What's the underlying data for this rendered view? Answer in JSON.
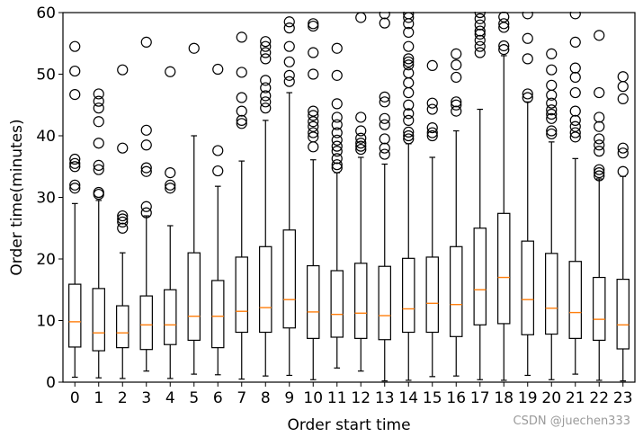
{
  "chart_data": {
    "type": "box",
    "xlabel": "Order start time",
    "ylabel": "Order time(minutes)",
    "ylim": [
      0,
      60
    ],
    "yticks": [
      0,
      10,
      20,
      30,
      40,
      50,
      60
    ],
    "categories": [
      "0",
      "1",
      "2",
      "3",
      "4",
      "5",
      "6",
      "7",
      "8",
      "9",
      "10",
      "11",
      "12",
      "13",
      "14",
      "15",
      "16",
      "17",
      "18",
      "19",
      "20",
      "21",
      "22",
      "23"
    ],
    "boxes": [
      {
        "q1": 5.7,
        "median": 9.8,
        "q3": 15.9,
        "whisker_low": 0.8,
        "whisker_high": 29.0,
        "outliers": [
          31.5,
          32.0,
          35.0,
          35.5,
          36.2,
          46.7,
          50.5,
          54.5
        ]
      },
      {
        "q1": 5.1,
        "median": 8.0,
        "q3": 15.2,
        "whisker_low": 0.7,
        "whisker_high": 29.5,
        "outliers": [
          30.5,
          30.8,
          34.5,
          35.2,
          38.8,
          42.3,
          44.5,
          45.6,
          46.8
        ]
      },
      {
        "q1": 5.6,
        "median": 8.0,
        "q3": 12.4,
        "whisker_low": 0.6,
        "whisker_high": 21.0,
        "outliers": [
          25.0,
          26.0,
          26.5,
          27.0,
          38.0,
          50.7
        ]
      },
      {
        "q1": 5.3,
        "median": 9.3,
        "q3": 14.0,
        "whisker_low": 1.8,
        "whisker_high": 27.0,
        "outliers": [
          27.5,
          28.5,
          34.2,
          34.8,
          38.5,
          40.9,
          55.2
        ]
      },
      {
        "q1": 6.1,
        "median": 9.3,
        "q3": 15.0,
        "whisker_low": 0.6,
        "whisker_high": 25.4,
        "outliers": [
          31.5,
          32.0,
          34.0,
          50.4
        ]
      },
      {
        "q1": 6.8,
        "median": 10.7,
        "q3": 21.0,
        "whisker_low": 1.3,
        "whisker_high": 40.0,
        "outliers": [
          54.2
        ]
      },
      {
        "q1": 5.6,
        "median": 10.7,
        "q3": 16.5,
        "whisker_low": 1.2,
        "whisker_high": 31.8,
        "outliers": [
          34.3,
          37.6,
          50.8
        ]
      },
      {
        "q1": 8.1,
        "median": 11.5,
        "q3": 20.3,
        "whisker_low": 0.5,
        "whisker_high": 35.9,
        "outliers": [
          42.0,
          42.5,
          44.0,
          46.2,
          50.3,
          56.0
        ]
      },
      {
        "q1": 8.1,
        "median": 12.1,
        "q3": 22.0,
        "whisker_low": 1.0,
        "whisker_high": 42.5,
        "outliers": [
          44.5,
          45.5,
          46.5,
          47.8,
          49.0,
          52.5,
          53.5,
          54.5,
          55.3
        ]
      },
      {
        "q1": 8.8,
        "median": 13.4,
        "q3": 24.7,
        "whisker_low": 1.1,
        "whisker_high": 47.0,
        "outliers": [
          48.8,
          49.8,
          52.0,
          54.5,
          57.5,
          58.5
        ]
      },
      {
        "q1": 7.1,
        "median": 11.4,
        "q3": 18.9,
        "whisker_low": 0.4,
        "whisker_high": 36.1,
        "outliers": [
          38.2,
          39.8,
          40.5,
          41.5,
          42.3,
          43.3,
          44.0,
          50.0,
          53.5,
          57.8,
          58.2
        ]
      },
      {
        "q1": 7.3,
        "median": 11.0,
        "q3": 18.1,
        "whisker_low": 2.3,
        "whisker_high": 34.0,
        "outliers": [
          34.8,
          35.3,
          36.3,
          37.5,
          38.3,
          39.3,
          40.5,
          41.8,
          43.0,
          45.2,
          49.8,
          54.2
        ]
      },
      {
        "q1": 7.1,
        "median": 11.2,
        "q3": 19.3,
        "whisker_low": 1.8,
        "whisker_high": 36.5,
        "outliers": [
          37.8,
          38.3,
          38.8,
          39.6,
          40.8,
          43.0,
          59.2
        ]
      },
      {
        "q1": 6.9,
        "median": 10.8,
        "q3": 18.8,
        "whisker_low": 0.2,
        "whisker_high": 35.4,
        "outliers": [
          37.0,
          38.0,
          39.5,
          41.8,
          42.8,
          45.5,
          46.3,
          58.3,
          59.8
        ]
      },
      {
        "q1": 8.1,
        "median": 11.9,
        "q3": 20.1,
        "whisker_low": 0.3,
        "whisker_high": 38.7,
        "outliers": [
          39.5,
          40.0,
          40.6,
          42.5,
          43.6,
          45.0,
          47.0,
          48.6,
          50.2,
          51.5,
          52.0,
          52.5,
          54.5,
          56.8,
          58.2,
          59.2,
          59.8
        ]
      },
      {
        "q1": 8.1,
        "median": 12.8,
        "q3": 20.3,
        "whisker_low": 0.9,
        "whisker_high": 36.5,
        "outliers": [
          40.0,
          40.5,
          41.3,
          44.3,
          45.3,
          51.4
        ]
      },
      {
        "q1": 7.4,
        "median": 12.6,
        "q3": 22.0,
        "whisker_low": 1.0,
        "whisker_high": 40.8,
        "outliers": [
          44.0,
          45.0,
          45.5,
          49.5,
          51.5,
          53.3
        ]
      },
      {
        "q1": 9.3,
        "median": 15.0,
        "q3": 25.0,
        "whisker_low": 0.4,
        "whisker_high": 44.3,
        "outliers": [
          53.5,
          54.5,
          55.5,
          56.5,
          57.0,
          58.0,
          59.0,
          60.0
        ]
      },
      {
        "q1": 9.5,
        "median": 17.0,
        "q3": 27.4,
        "whisker_low": 0.3,
        "whisker_high": 53.0,
        "outliers": [
          54.0,
          54.6,
          57.6,
          58.2,
          59.3
        ]
      },
      {
        "q1": 7.7,
        "median": 13.4,
        "q3": 22.9,
        "whisker_low": 1.1,
        "whisker_high": 45.5,
        "outliers": [
          46.2,
          46.8,
          52.5,
          55.8,
          59.8
        ]
      },
      {
        "q1": 7.8,
        "median": 12.0,
        "q3": 20.9,
        "whisker_low": 0.4,
        "whisker_high": 39.0,
        "outliers": [
          40.3,
          40.8,
          42.8,
          43.5,
          44.2,
          45.3,
          46.6,
          48.2,
          50.7,
          53.3
        ]
      },
      {
        "q1": 7.1,
        "median": 11.3,
        "q3": 19.6,
        "whisker_low": 1.3,
        "whisker_high": 36.3,
        "outliers": [
          39.8,
          40.5,
          41.5,
          42.5,
          44.0,
          47.0,
          49.5,
          51.0,
          55.2,
          59.8
        ]
      },
      {
        "q1": 6.8,
        "median": 10.2,
        "q3": 17.0,
        "whisker_low": 0.3,
        "whisker_high": 33.0,
        "outliers": [
          33.5,
          34.0,
          34.5,
          37.5,
          38.5,
          39.5,
          41.5,
          43.0,
          47.0,
          56.3
        ]
      },
      {
        "q1": 5.4,
        "median": 9.3,
        "q3": 16.7,
        "whisker_low": 0.2,
        "whisker_high": 33.4,
        "outliers": [
          34.2,
          37.2,
          38.0,
          46.0,
          48.0,
          49.6
        ]
      }
    ]
  },
  "watermark": "CSDN @juechen333",
  "colors": {
    "box_stroke": "#000000",
    "median": "#ff7f0e",
    "background": "#ffffff"
  }
}
